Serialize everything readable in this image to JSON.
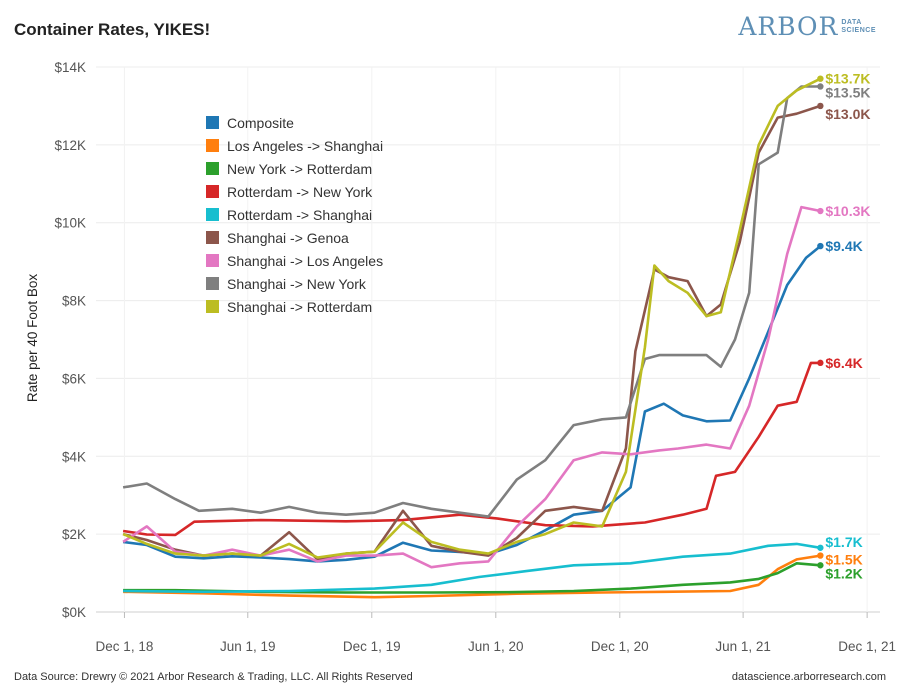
{
  "header": {
    "title": "Container Rates, YIKES!",
    "logo_word": "ARBOR",
    "logo_sub_1": "DATA",
    "logo_sub_2": "SCIENCE"
  },
  "footer": {
    "source": "Data Source: Drewry © 2021 Arbor Research & Trading, LLC. All Rights Reserved",
    "site": "datascience.arborresearch.com"
  },
  "chart_data": {
    "type": "line",
    "title": "Container Rates, YIKES!",
    "xlabel": "",
    "ylabel": "Rate per 40 Foot Box",
    "x_ticks": [
      "Dec 1, 18",
      "Jun 1, 19",
      "Dec 1, 19",
      "Jun 1, 20",
      "Dec 1, 20",
      "Jun 1, 21",
      "Dec 1, 21"
    ],
    "y_ticks": [
      "$0K",
      "$2K",
      "$4K",
      "$6K",
      "$8K",
      "$10K",
      "$12K",
      "$14K"
    ],
    "xlim": [
      "2018-10-20",
      "2021-12-20"
    ],
    "ylim": [
      0,
      14000
    ],
    "grid": true,
    "legend_position": "upper-left-inside",
    "series": [
      {
        "name": "Composite",
        "color": "#1f77b4",
        "end_label": "$9.4K",
        "points": [
          [
            "2018-11-29",
            1800
          ],
          [
            "2019-01-03",
            1720
          ],
          [
            "2019-02-14",
            1420
          ],
          [
            "2019-03-28",
            1380
          ],
          [
            "2019-05-09",
            1430
          ],
          [
            "2019-06-20",
            1400
          ],
          [
            "2019-08-01",
            1360
          ],
          [
            "2019-09-12",
            1300
          ],
          [
            "2019-10-24",
            1340
          ],
          [
            "2019-12-05",
            1420
          ],
          [
            "2020-01-16",
            1780
          ],
          [
            "2020-02-27",
            1580
          ],
          [
            "2020-04-09",
            1540
          ],
          [
            "2020-05-21",
            1490
          ],
          [
            "2020-07-02",
            1720
          ],
          [
            "2020-08-13",
            2100
          ],
          [
            "2020-09-24",
            2500
          ],
          [
            "2020-11-05",
            2600
          ],
          [
            "2020-12-17",
            3200
          ],
          [
            "2021-01-07",
            5150
          ],
          [
            "2021-02-04",
            5350
          ],
          [
            "2021-03-04",
            5050
          ],
          [
            "2021-04-08",
            4900
          ],
          [
            "2021-05-13",
            4920
          ],
          [
            "2021-06-10",
            6000
          ],
          [
            "2021-07-08",
            7200
          ],
          [
            "2021-08-05",
            8400
          ],
          [
            "2021-09-02",
            9100
          ],
          [
            "2021-09-23",
            9400
          ]
        ]
      },
      {
        "name": "Los Angeles -> Shanghai",
        "color": "#ff7f0e",
        "end_label": "$1.5K",
        "points": [
          [
            "2018-11-29",
            520
          ],
          [
            "2019-03-28",
            480
          ],
          [
            "2019-08-01",
            420
          ],
          [
            "2019-12-05",
            380
          ],
          [
            "2020-02-27",
            410
          ],
          [
            "2020-07-02",
            470
          ],
          [
            "2020-11-05",
            500
          ],
          [
            "2021-02-04",
            520
          ],
          [
            "2021-05-13",
            540
          ],
          [
            "2021-06-24",
            700
          ],
          [
            "2021-07-22",
            1100
          ],
          [
            "2021-08-19",
            1350
          ],
          [
            "2021-09-23",
            1450
          ]
        ]
      },
      {
        "name": "New York -> Rotterdam",
        "color": "#2ca02c",
        "end_label": "$1.2K",
        "points": [
          [
            "2018-11-29",
            560
          ],
          [
            "2019-02-14",
            560
          ],
          [
            "2019-06-20",
            520
          ],
          [
            "2019-10-24",
            500
          ],
          [
            "2020-02-27",
            500
          ],
          [
            "2020-07-02",
            510
          ],
          [
            "2020-09-24",
            540
          ],
          [
            "2020-12-17",
            600
          ],
          [
            "2021-03-04",
            700
          ],
          [
            "2021-05-13",
            760
          ],
          [
            "2021-06-24",
            850
          ],
          [
            "2021-07-22",
            1000
          ],
          [
            "2021-08-19",
            1250
          ],
          [
            "2021-09-23",
            1200
          ]
        ]
      },
      {
        "name": "Rotterdam -> New York",
        "color": "#d62728",
        "end_label": "$6.4K",
        "points": [
          [
            "2018-11-29",
            2080
          ],
          [
            "2019-01-03",
            1990
          ],
          [
            "2019-02-14",
            1980
          ],
          [
            "2019-03-14",
            2320
          ],
          [
            "2019-06-20",
            2360
          ],
          [
            "2019-10-24",
            2330
          ],
          [
            "2020-01-16",
            2360
          ],
          [
            "2020-04-09",
            2500
          ],
          [
            "2020-06-04",
            2400
          ],
          [
            "2020-08-13",
            2230
          ],
          [
            "2020-10-22",
            2200
          ],
          [
            "2021-01-07",
            2300
          ],
          [
            "2021-03-04",
            2500
          ],
          [
            "2021-04-08",
            2650
          ],
          [
            "2021-04-22",
            3500
          ],
          [
            "2021-05-20",
            3600
          ],
          [
            "2021-06-24",
            4500
          ],
          [
            "2021-07-22",
            5300
          ],
          [
            "2021-08-19",
            5400
          ],
          [
            "2021-09-09",
            6400
          ],
          [
            "2021-09-23",
            6400
          ]
        ]
      },
      {
        "name": "Rotterdam -> Shanghai",
        "color": "#17becf",
        "end_label": "$1.7K",
        "points": [
          [
            "2018-11-29",
            540
          ],
          [
            "2019-03-28",
            520
          ],
          [
            "2019-08-01",
            540
          ],
          [
            "2019-12-05",
            600
          ],
          [
            "2020-02-27",
            700
          ],
          [
            "2020-05-07",
            900
          ],
          [
            "2020-07-16",
            1050
          ],
          [
            "2020-09-24",
            1200
          ],
          [
            "2020-12-17",
            1250
          ],
          [
            "2021-03-04",
            1420
          ],
          [
            "2021-05-13",
            1500
          ],
          [
            "2021-07-08",
            1700
          ],
          [
            "2021-08-19",
            1750
          ],
          [
            "2021-09-23",
            1650
          ]
        ]
      },
      {
        "name": "Shanghai -> Genoa",
        "color": "#8c564b",
        "end_label": "$13.0K",
        "points": [
          [
            "2018-11-29",
            2000
          ],
          [
            "2019-01-03",
            1850
          ],
          [
            "2019-02-14",
            1600
          ],
          [
            "2019-03-28",
            1450
          ],
          [
            "2019-05-09",
            1500
          ],
          [
            "2019-06-20",
            1450
          ],
          [
            "2019-08-01",
            2050
          ],
          [
            "2019-09-12",
            1350
          ],
          [
            "2019-10-24",
            1500
          ],
          [
            "2019-12-05",
            1550
          ],
          [
            "2020-01-16",
            2600
          ],
          [
            "2020-02-27",
            1700
          ],
          [
            "2020-04-09",
            1550
          ],
          [
            "2020-05-21",
            1450
          ],
          [
            "2020-07-02",
            1900
          ],
          [
            "2020-08-13",
            2600
          ],
          [
            "2020-09-24",
            2700
          ],
          [
            "2020-11-05",
            2600
          ],
          [
            "2020-12-10",
            4200
          ],
          [
            "2020-12-24",
            6700
          ],
          [
            "2021-01-21",
            8800
          ],
          [
            "2021-02-11",
            8600
          ],
          [
            "2021-03-11",
            8500
          ],
          [
            "2021-04-08",
            7600
          ],
          [
            "2021-04-29",
            7900
          ],
          [
            "2021-05-27",
            9500
          ],
          [
            "2021-06-24",
            11800
          ],
          [
            "2021-07-22",
            12700
          ],
          [
            "2021-08-19",
            12800
          ],
          [
            "2021-09-23",
            13000
          ]
        ]
      },
      {
        "name": "Shanghai -> Los Angeles",
        "color": "#e377c2",
        "end_label": "$10.3K",
        "points": [
          [
            "2018-11-29",
            1800
          ],
          [
            "2019-01-03",
            2200
          ],
          [
            "2019-02-14",
            1550
          ],
          [
            "2019-03-28",
            1450
          ],
          [
            "2019-05-09",
            1600
          ],
          [
            "2019-06-20",
            1450
          ],
          [
            "2019-08-01",
            1600
          ],
          [
            "2019-09-12",
            1300
          ],
          [
            "2019-10-24",
            1450
          ],
          [
            "2019-12-05",
            1450
          ],
          [
            "2020-01-16",
            1500
          ],
          [
            "2020-02-27",
            1150
          ],
          [
            "2020-04-09",
            1250
          ],
          [
            "2020-05-21",
            1300
          ],
          [
            "2020-07-02",
            2200
          ],
          [
            "2020-08-13",
            2900
          ],
          [
            "2020-09-24",
            3900
          ],
          [
            "2020-11-05",
            4100
          ],
          [
            "2020-12-17",
            4050
          ],
          [
            "2021-01-28",
            4150
          ],
          [
            "2021-02-25",
            4200
          ],
          [
            "2021-04-08",
            4300
          ],
          [
            "2021-05-13",
            4200
          ],
          [
            "2021-06-10",
            5300
          ],
          [
            "2021-07-08",
            7000
          ],
          [
            "2021-08-05",
            9200
          ],
          [
            "2021-08-26",
            10400
          ],
          [
            "2021-09-23",
            10300
          ]
        ]
      },
      {
        "name": "Shanghai -> New York",
        "color": "#7f7f7f",
        "end_label": "$13.5K",
        "points": [
          [
            "2018-11-29",
            3200
          ],
          [
            "2019-01-03",
            3300
          ],
          [
            "2019-02-14",
            2900
          ],
          [
            "2019-03-21",
            2600
          ],
          [
            "2019-05-09",
            2650
          ],
          [
            "2019-06-20",
            2550
          ],
          [
            "2019-08-01",
            2700
          ],
          [
            "2019-09-12",
            2550
          ],
          [
            "2019-10-24",
            2500
          ],
          [
            "2019-12-05",
            2550
          ],
          [
            "2020-01-16",
            2800
          ],
          [
            "2020-02-27",
            2650
          ],
          [
            "2020-04-09",
            2550
          ],
          [
            "2020-05-21",
            2450
          ],
          [
            "2020-07-02",
            3400
          ],
          [
            "2020-08-13",
            3900
          ],
          [
            "2020-09-24",
            4800
          ],
          [
            "2020-11-05",
            4950
          ],
          [
            "2020-12-10",
            5000
          ],
          [
            "2021-01-07",
            6500
          ],
          [
            "2021-01-28",
            6600
          ],
          [
            "2021-03-04",
            6600
          ],
          [
            "2021-04-08",
            6600
          ],
          [
            "2021-04-29",
            6300
          ],
          [
            "2021-05-20",
            7000
          ],
          [
            "2021-06-10",
            8200
          ],
          [
            "2021-06-24",
            11500
          ],
          [
            "2021-07-22",
            11800
          ],
          [
            "2021-08-05",
            13200
          ],
          [
            "2021-08-26",
            13500
          ],
          [
            "2021-09-23",
            13500
          ]
        ]
      },
      {
        "name": "Shanghai -> Rotterdam",
        "color": "#bcbd22",
        "end_label": "$13.7K",
        "points": [
          [
            "2018-11-29",
            2000
          ],
          [
            "2019-01-03",
            1750
          ],
          [
            "2019-02-14",
            1500
          ],
          [
            "2019-03-28",
            1450
          ],
          [
            "2019-05-09",
            1500
          ],
          [
            "2019-06-20",
            1450
          ],
          [
            "2019-08-01",
            1750
          ],
          [
            "2019-09-12",
            1400
          ],
          [
            "2019-10-24",
            1500
          ],
          [
            "2019-12-05",
            1550
          ],
          [
            "2020-01-16",
            2300
          ],
          [
            "2020-02-27",
            1800
          ],
          [
            "2020-04-09",
            1600
          ],
          [
            "2020-05-21",
            1500
          ],
          [
            "2020-07-02",
            1800
          ],
          [
            "2020-08-13",
            2000
          ],
          [
            "2020-09-24",
            2300
          ],
          [
            "2020-11-05",
            2200
          ],
          [
            "2020-12-10",
            3600
          ],
          [
            "2021-01-07",
            6800
          ],
          [
            "2021-01-21",
            8900
          ],
          [
            "2021-02-11",
            8500
          ],
          [
            "2021-03-11",
            8200
          ],
          [
            "2021-04-08",
            7600
          ],
          [
            "2021-04-29",
            7700
          ],
          [
            "2021-05-27",
            9800
          ],
          [
            "2021-06-24",
            12000
          ],
          [
            "2021-07-22",
            13000
          ],
          [
            "2021-08-19",
            13400
          ],
          [
            "2021-09-23",
            13700
          ]
        ]
      }
    ]
  }
}
